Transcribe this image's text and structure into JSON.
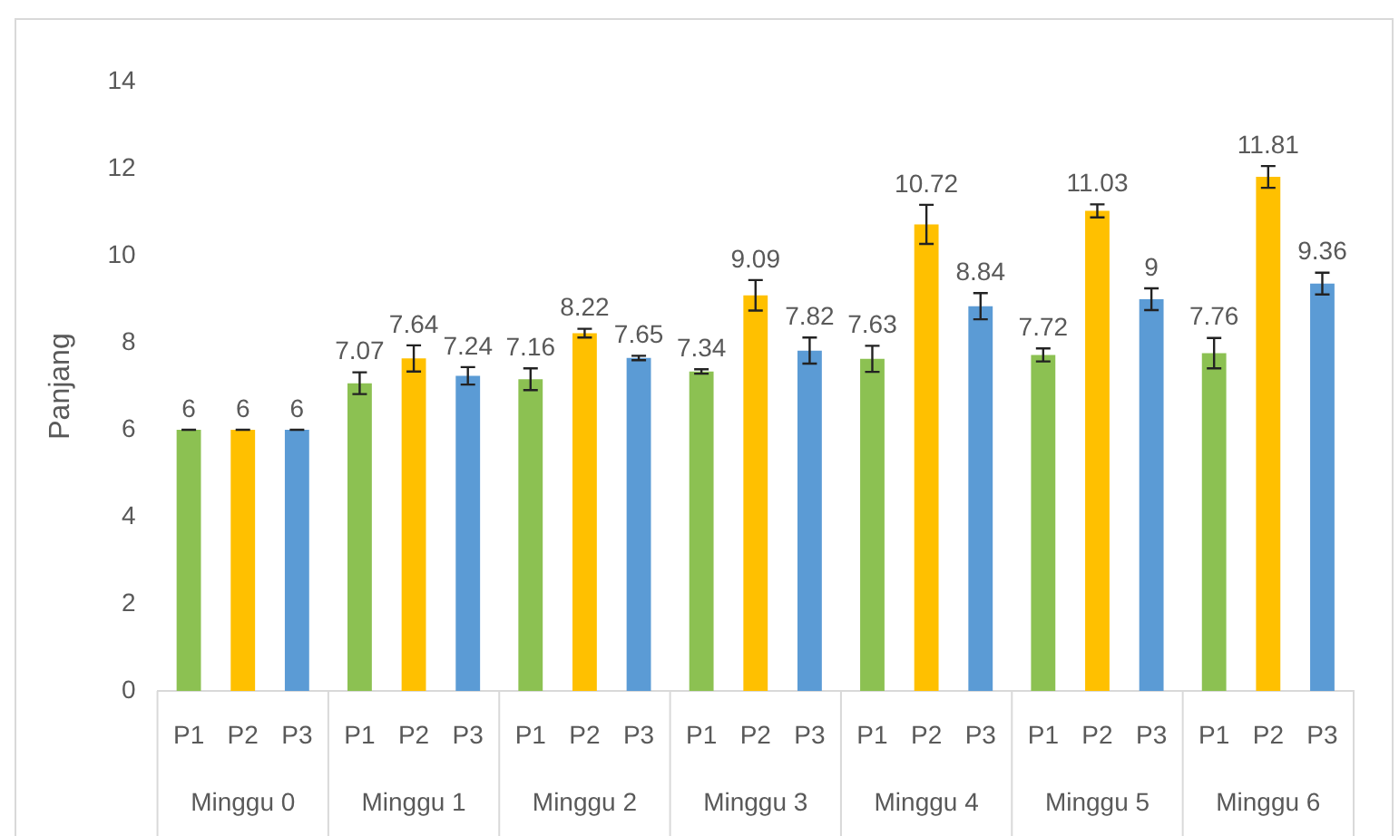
{
  "chart_data": {
    "type": "bar",
    "ylabel": "Panjang",
    "categories": [
      "Minggu 0",
      "Minggu 1",
      "Minggu 2",
      "Minggu 3",
      "Minggu 4",
      "Minggu 5",
      "Minggu 6"
    ],
    "series": [
      {
        "name": "P1",
        "color": "#8cc152",
        "values": [
          6,
          7.07,
          7.16,
          7.34,
          7.63,
          7.72,
          7.76
        ],
        "errors": [
          0,
          0.25,
          0.25,
          0.05,
          0.3,
          0.15,
          0.35
        ]
      },
      {
        "name": "P2",
        "color": "#ffc000",
        "values": [
          6,
          7.64,
          8.22,
          9.09,
          10.72,
          11.03,
          11.81
        ],
        "errors": [
          0,
          0.3,
          0.1,
          0.35,
          0.45,
          0.15,
          0.25
        ]
      },
      {
        "name": "P3",
        "color": "#5b9bd5",
        "values": [
          6,
          7.24,
          7.65,
          7.82,
          8.84,
          9,
          9.36
        ],
        "errors": [
          0,
          0.2,
          0.05,
          0.3,
          0.3,
          0.25,
          0.25
        ]
      }
    ],
    "ylim": [
      0,
      14
    ],
    "yticks": [
      0,
      2,
      4,
      6,
      8,
      10,
      12,
      14
    ],
    "grid": false,
    "legend": false,
    "data_labels": true
  }
}
